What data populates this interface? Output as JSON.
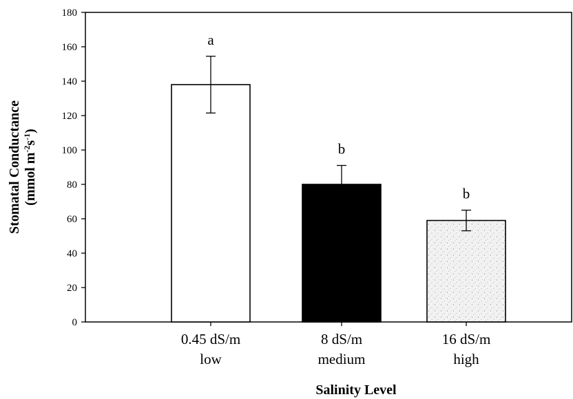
{
  "chart_data": {
    "type": "bar",
    "title": "",
    "xlabel": "Salinity Level",
    "ylabel": {
      "line1": "Stomatal Conductance",
      "line2_prefix": "(mmol m",
      "line2_sup1": "-2",
      "line2_mid": "s",
      "line2_sup2": "-1",
      "line2_suffix": ")"
    },
    "ylim": [
      0,
      180
    ],
    "yticks": [
      0,
      20,
      40,
      60,
      80,
      100,
      120,
      140,
      160,
      180
    ],
    "grid": false,
    "legend": "none",
    "bars": [
      {
        "line1": "0.45 dS/m",
        "line2": "low",
        "value": 138,
        "error": 16.5,
        "sig": "a",
        "fill": "white",
        "color": "#ffffff"
      },
      {
        "line1": "8 dS/m",
        "line2": "medium",
        "value": 80,
        "error": 11,
        "sig": "b",
        "fill": "solid",
        "color": "#000000"
      },
      {
        "line1": "16 dS/m",
        "line2": "high",
        "value": 59,
        "error": 6,
        "sig": "b",
        "fill": "stipple",
        "color": "#eeeeee"
      }
    ]
  }
}
